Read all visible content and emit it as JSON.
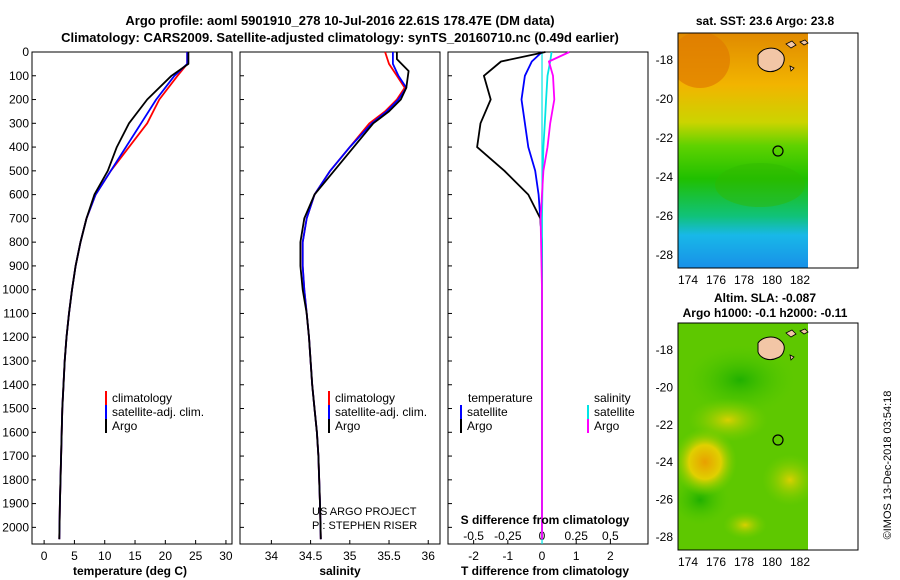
{
  "header": {
    "line1": "Argo profile: aoml 5901910_278 10-Jul-2016 22.61S 178.47E (DM data)",
    "line2": "Climatology: CARS2009. Satellite-adjusted climatology: synTS_20160710.nc (0.49d earlier)"
  },
  "credits": {
    "project": "US ARGO PROJECT",
    "pi": "PI: STEPHEN RISER",
    "imos": "©IMOS 13-Dec-2018 03:54:18"
  },
  "maps": {
    "sst_title": "sat. SST: 23.6 Argo: 23.8",
    "sla_title1": "Altim. SLA: -0.087",
    "sla_title2": "Argo h1000: -0.1 h2000: -0.11",
    "lon_ticks": [
      "174",
      "176",
      "178",
      "180",
      "182"
    ],
    "lat_ticks": [
      "-18",
      "-20",
      "-22",
      "-24",
      "-26",
      "-28"
    ],
    "argo_position": {
      "lon": 178.47,
      "lat": -22.61
    }
  },
  "colors": {
    "climatology": "#ff0000",
    "satellite_adj": "#0000ff",
    "argo": "#000000",
    "salinity_sat": "#00e5e5",
    "salinity_argo": "#ff00ff"
  },
  "chart_data": [
    {
      "type": "line",
      "xlabel": "temperature (deg C)",
      "ylabel": "",
      "xlim": [
        -2,
        31
      ],
      "ylim": [
        2070,
        0
      ],
      "xticks": [
        "0",
        "5",
        "10",
        "15",
        "20",
        "25",
        "30"
      ],
      "yticks": [
        "0",
        "100",
        "200",
        "300",
        "400",
        "500",
        "600",
        "700",
        "800",
        "900",
        "1000",
        "1100",
        "1200",
        "1300",
        "1400",
        "1500",
        "1600",
        "1700",
        "1800",
        "1900",
        "2000"
      ],
      "legend": [
        "climatology",
        "satellite-adj. clim.",
        "Argo"
      ],
      "series": [
        {
          "name": "climatology",
          "color": "#ff0000",
          "x": [
            23.6,
            23.6,
            22,
            19,
            17,
            14,
            11,
            8.5,
            7,
            6,
            5.2,
            4.6,
            4.1,
            3.7,
            3.4,
            3.2,
            3,
            2.9,
            2.8,
            2.7,
            2.6,
            2.5
          ],
          "y": [
            0,
            50,
            100,
            200,
            300,
            400,
            500,
            600,
            700,
            800,
            900,
            1000,
            1100,
            1200,
            1300,
            1400,
            1500,
            1600,
            1700,
            1800,
            1900,
            2050
          ]
        },
        {
          "name": "satellite-adj. clim.",
          "color": "#0000ff",
          "x": [
            23.6,
            23.6,
            21.5,
            18.5,
            16,
            13.5,
            11,
            8.5,
            7,
            6,
            5.2,
            4.6,
            4.1,
            3.7,
            3.4,
            3.2,
            3,
            2.9,
            2.8,
            2.7,
            2.6,
            2.5
          ],
          "y": [
            0,
            50,
            100,
            200,
            300,
            400,
            500,
            600,
            700,
            800,
            900,
            1000,
            1100,
            1200,
            1300,
            1400,
            1500,
            1600,
            1700,
            1800,
            1900,
            2050
          ]
        },
        {
          "name": "Argo",
          "color": "#000000",
          "x": [
            23.8,
            23.8,
            21,
            17,
            14,
            12,
            10.5,
            8.3,
            7,
            6,
            5.2,
            4.6,
            4.1,
            3.7,
            3.4,
            3.2,
            3,
            2.9,
            2.8,
            2.7,
            2.6,
            2.5
          ],
          "y": [
            0,
            50,
            100,
            200,
            300,
            400,
            500,
            600,
            700,
            800,
            900,
            1000,
            1100,
            1200,
            1300,
            1400,
            1500,
            1600,
            1700,
            1800,
            1900,
            2050
          ]
        }
      ]
    },
    {
      "type": "line",
      "xlabel": "salinity",
      "ylabel": "",
      "xlim": [
        33.6,
        36.15
      ],
      "ylim": [
        2070,
        0
      ],
      "xticks": [
        "34",
        "34.5",
        "35",
        "35.5",
        "36"
      ],
      "legend": [
        "climatology",
        "satellite-adj. clim.",
        "Argo"
      ],
      "series": [
        {
          "name": "climatology",
          "color": "#ff0000",
          "x": [
            35.45,
            35.5,
            35.6,
            35.7,
            35.6,
            35.45,
            35.25,
            35,
            34.75,
            34.55,
            34.45,
            34.4,
            34.4,
            34.42,
            34.45,
            34.48,
            34.5,
            34.52,
            34.55,
            34.58,
            34.6,
            34.62,
            34.63
          ],
          "y": [
            0,
            50,
            100,
            150,
            200,
            250,
            300,
            400,
            500,
            600,
            700,
            800,
            900,
            1000,
            1100,
            1200,
            1300,
            1400,
            1500,
            1600,
            1700,
            1900,
            2050
          ]
        },
        {
          "name": "satellite-adj. clim.",
          "color": "#0000ff",
          "x": [
            35.55,
            35.55,
            35.62,
            35.72,
            35.62,
            35.47,
            35.28,
            35,
            34.75,
            34.55,
            34.45,
            34.4,
            34.4,
            34.42,
            34.45,
            34.48,
            34.5,
            34.52,
            34.55,
            34.58,
            34.6,
            34.62,
            34.63
          ],
          "y": [
            0,
            50,
            100,
            150,
            200,
            250,
            300,
            400,
            500,
            600,
            700,
            800,
            900,
            1000,
            1100,
            1200,
            1300,
            1400,
            1500,
            1600,
            1700,
            1900,
            2050
          ]
        },
        {
          "name": "Argo",
          "color": "#000000",
          "x": [
            35.6,
            35.6,
            35.75,
            35.72,
            35.65,
            35.5,
            35.3,
            35.05,
            34.8,
            34.55,
            34.42,
            34.37,
            34.37,
            34.4,
            34.45,
            34.48,
            34.5,
            34.52,
            34.55,
            34.58,
            34.6,
            34.62,
            34.63
          ],
          "y": [
            0,
            30,
            80,
            150,
            200,
            250,
            300,
            400,
            500,
            600,
            700,
            800,
            900,
            1000,
            1100,
            1200,
            1300,
            1400,
            1500,
            1600,
            1700,
            1900,
            2050
          ]
        }
      ]
    },
    {
      "type": "line",
      "xlabel": "T difference from climatology",
      "ylabel": "",
      "xlim": [
        -2.75,
        3.1
      ],
      "ylim": [
        2070,
        0
      ],
      "xticks": [
        "-2",
        "-1",
        "0",
        "1",
        "2"
      ],
      "xlabel2": "S difference from climatology",
      "xticks2": [
        "-0.5",
        "-0.25",
        "0",
        "0.25",
        "0.5"
      ],
      "legend": [
        "temperature",
        "satellite",
        "Argo",
        "salinity",
        "satellite",
        "Argo"
      ],
      "series": [
        {
          "name": "satellite",
          "group": "temperature",
          "color": "#0000ff",
          "x": [
            0,
            -0.3,
            -0.5,
            -0.6,
            -0.5,
            -0.4,
            -0.2,
            -0.1,
            -0.05,
            0,
            0,
            0,
            0,
            0
          ],
          "y": [
            0,
            40,
            100,
            200,
            300,
            400,
            500,
            600,
            700,
            800,
            1000,
            1500,
            1800,
            2050
          ]
        },
        {
          "name": "Argo",
          "group": "temperature",
          "color": "#000000",
          "x": [
            0.1,
            -1.2,
            -1.7,
            -1.5,
            -1.8,
            -1.9,
            -1.1,
            -0.4,
            -0.05,
            0,
            0,
            0,
            0,
            0
          ],
          "y": [
            0,
            40,
            100,
            200,
            300,
            400,
            500,
            600,
            700,
            800,
            1000,
            1500,
            1800,
            2050
          ]
        },
        {
          "name": "satellite",
          "group": "salinity",
          "color": "#00e5e5",
          "x": [
            0.07,
            0.06,
            0.04,
            0.03,
            0.02,
            0.01,
            0.005,
            0,
            0,
            0,
            0,
            0
          ],
          "y": [
            0,
            40,
            100,
            200,
            300,
            400,
            500,
            700,
            1000,
            1500,
            1800,
            2050
          ]
        },
        {
          "name": "Argo",
          "group": "salinity",
          "color": "#ff00ff",
          "x": [
            0.2,
            0.05,
            0.08,
            0.09,
            0.06,
            0.04,
            0.01,
            -0.01,
            0,
            0,
            0,
            0
          ],
          "y": [
            0,
            40,
            100,
            200,
            300,
            400,
            500,
            700,
            1000,
            1500,
            1800,
            2050
          ]
        }
      ]
    }
  ]
}
